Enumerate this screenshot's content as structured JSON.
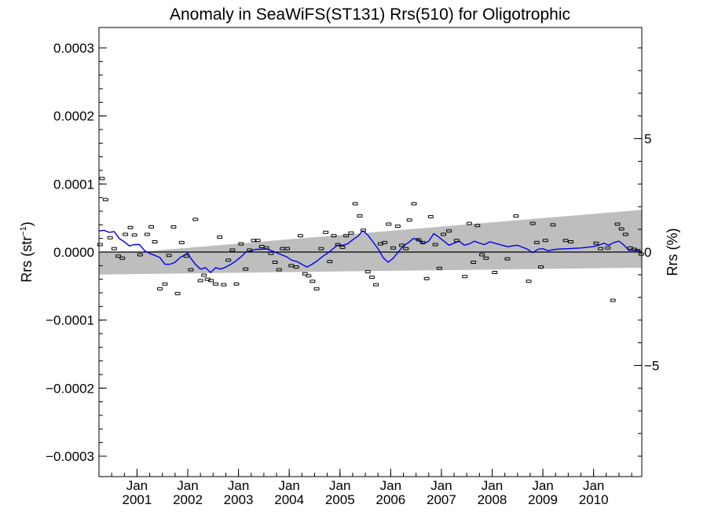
{
  "chart_data": {
    "type": "scatter",
    "title": "Anomaly in SeaWiFS(ST131) Rrs(510) for Oligotrophic",
    "ylabel_left": "Rrs (str",
    "ylabel_left_sup": "−1",
    "ylabel_left_close": ")",
    "ylabel_right": "Rrs (%)",
    "xlim": [
      2000.25,
      2010.95
    ],
    "ylim": [
      -0.00033,
      0.00033
    ],
    "y2lim": [
      -9.9,
      9.9
    ],
    "y_ticks": [
      0.0003,
      0.0002,
      0.0001,
      0.0,
      -0.0001,
      -0.0002,
      -0.0003
    ],
    "y_tick_labels": [
      "0.0003",
      "0.0002",
      "0.0001",
      "0.0000",
      "−0.0001",
      "−0.0002",
      "−0.0003"
    ],
    "y2_ticks": [
      5,
      0,
      -5
    ],
    "y2_tick_labels": [
      "5",
      "0",
      "−5"
    ],
    "x_ticks": [
      2001.0,
      2002.0,
      2003.0,
      2004.0,
      2005.0,
      2006.0,
      2007.0,
      2008.0,
      2009.0,
      2010.0
    ],
    "x_tick_month": "Jan",
    "x_tick_years": [
      "2001",
      "2002",
      "2003",
      "2004",
      "2005",
      "2006",
      "2007",
      "2008",
      "2009",
      "2010"
    ],
    "band": {
      "color": "#bebebe",
      "x": [
        2001.0,
        2010.95
      ],
      "upper": [
        0.0,
        6.2e-05
      ],
      "lower": [
        -3.3e-05,
        -2.3e-05
      ],
      "upper_left": 0.0,
      "lower_left": -3.3e-05,
      "x_left": 2000.25
    },
    "zero_line": 0.0,
    "series": [
      {
        "kind": "points",
        "color": "#000000",
        "x": [
          2000.27,
          2000.31,
          2000.38,
          2000.47,
          2000.55,
          2000.63,
          2000.71,
          2000.77,
          2000.87,
          2000.95,
          2001.06,
          2001.2,
          2001.28,
          2001.35,
          2001.45,
          2001.55,
          2001.63,
          2001.72,
          2001.8,
          2001.88,
          2001.97,
          2002.06,
          2002.15,
          2002.25,
          2002.32,
          2002.39,
          2002.46,
          2002.55,
          2002.63,
          2002.71,
          2002.8,
          2002.88,
          2002.96,
          2003.05,
          2003.14,
          2003.22,
          2003.3,
          2003.38,
          2003.46,
          2003.55,
          2003.64,
          2003.72,
          2003.8,
          2003.87,
          2003.96,
          2004.04,
          2004.14,
          2004.22,
          2004.31,
          2004.38,
          2004.46,
          2004.54,
          2004.63,
          2004.72,
          2004.8,
          2004.88,
          2004.96,
          2005.05,
          2005.12,
          2005.22,
          2005.3,
          2005.39,
          2005.46,
          2005.55,
          2005.63,
          2005.71,
          2005.8,
          2005.88,
          2005.96,
          2006.05,
          2006.14,
          2006.22,
          2006.3,
          2006.37,
          2006.46,
          2006.55,
          2006.63,
          2006.71,
          2006.79,
          2006.88,
          2006.96,
          2007.04,
          2007.15,
          2007.3,
          2007.46,
          2007.55,
          2007.63,
          2007.71,
          2007.8,
          2007.88,
          2008.05,
          2008.3,
          2008.47,
          2008.72,
          2008.8,
          2008.88,
          2008.96,
          2009.05,
          2009.2,
          2009.45,
          2009.55,
          2010.05,
          2010.14,
          2010.28,
          2010.38,
          2010.47,
          2010.55,
          2010.63,
          2010.72,
          2010.8,
          2010.87,
          2010.94
        ],
        "y": [
          1.1e-05,
          0.000108,
          7.7e-05,
          2.1e-05,
          5e-06,
          -6e-06,
          -9e-06,
          2.6e-05,
          3.6e-05,
          2.5e-05,
          -4e-06,
          2.6e-05,
          3.7e-05,
          1.5e-05,
          -5.4e-05,
          -4.7e-05,
          -5e-06,
          3.7e-05,
          -6.1e-05,
          1.4e-05,
          -6e-06,
          -2.6e-05,
          4.8e-05,
          -4.2e-05,
          -3.4e-05,
          -4e-05,
          -4.2e-05,
          -4.7e-05,
          2.2e-05,
          -4.8e-05,
          -1.2e-05,
          3e-06,
          -4.7e-05,
          1.2e-05,
          -2.5e-05,
          3e-06,
          1.7e-05,
          1.7e-05,
          8e-06,
          6e-06,
          -2e-06,
          -1.5e-05,
          -2.6e-05,
          5e-06,
          5e-06,
          -2e-05,
          -2.2e-05,
          2.4e-05,
          -3.2e-05,
          -3.5e-05,
          -4.3e-05,
          -5.4e-05,
          5e-06,
          2.9e-05,
          -1.4e-05,
          2.4e-05,
          1.1e-05,
          7e-06,
          2.4e-05,
          2.8e-05,
          7.1e-05,
          5.3e-05,
          3.2e-05,
          -2.9e-05,
          -3.7e-05,
          -4.8e-05,
          1.2e-05,
          1.4e-05,
          4.1e-05,
          6e-06,
          3.8e-05,
          1e-05,
          5e-06,
          4.7e-05,
          7.1e-05,
          1.8e-05,
          1.4e-05,
          -3.9e-05,
          5.2e-05,
          1.1e-05,
          -2.4e-05,
          2.6e-05,
          3.1e-05,
          1.7e-05,
          -3.6e-05,
          4.2e-05,
          -1.5e-05,
          3.9e-05,
          -4e-06,
          -9e-06,
          -3e-05,
          -1e-05,
          5.3e-05,
          -4.3e-05,
          4.2e-05,
          1.4e-05,
          -2.2e-05,
          1.7e-05,
          4e-05,
          1.7e-05,
          1.5e-05,
          1.3e-05,
          5e-06,
          6e-06,
          -7.1e-05,
          4.1e-05,
          3.4e-05,
          2.6e-05,
          6e-06,
          4e-06,
          2e-06,
          -3e-06
        ]
      },
      {
        "kind": "line",
        "color": "#0000ee",
        "x": [
          2000.25,
          2000.35,
          2000.45,
          2000.55,
          2000.65,
          2000.75,
          2000.85,
          2000.95,
          2001.05,
          2001.15,
          2001.25,
          2001.35,
          2001.45,
          2001.55,
          2001.65,
          2001.75,
          2001.85,
          2001.95,
          2002.0,
          2002.05,
          2002.15,
          2002.25,
          2002.35,
          2002.45,
          2002.55,
          2002.65,
          2002.75,
          2002.85,
          2002.95,
          2003.05,
          2003.15,
          2003.25,
          2003.35,
          2003.45,
          2003.55,
          2003.65,
          2003.75,
          2003.85,
          2003.95,
          2004.05,
          2004.15,
          2004.25,
          2004.35,
          2004.45,
          2004.55,
          2004.65,
          2004.75,
          2004.85,
          2004.95,
          2005.05,
          2005.15,
          2005.25,
          2005.35,
          2005.45,
          2005.55,
          2005.65,
          2005.75,
          2005.85,
          2005.95,
          2006.05,
          2006.15,
          2006.25,
          2006.35,
          2006.45,
          2006.55,
          2006.65,
          2006.75,
          2006.85,
          2006.95,
          2007.05,
          2007.15,
          2007.25,
          2007.35,
          2007.45,
          2007.55,
          2007.65,
          2007.75,
          2007.85,
          2007.95,
          2008.1,
          2008.3,
          2008.5,
          2008.7,
          2008.8,
          2008.9,
          2009.0,
          2009.1,
          2009.25,
          2009.5,
          2009.75,
          2010.0,
          2010.1,
          2010.2,
          2010.3,
          2010.4,
          2010.5,
          2010.6,
          2010.7,
          2010.8,
          2010.9,
          2010.95
        ],
        "y": [
          3.1e-05,
          3.2e-05,
          2.9e-05,
          3e-05,
          2e-05,
          1.5e-05,
          9e-06,
          1.1e-05,
          1.1e-05,
          2e-06,
          -2e-06,
          -5e-06,
          -8e-06,
          -1.8e-05,
          -1.8e-05,
          -1.5e-05,
          -8e-06,
          -4e-06,
          -1e-06,
          -8e-06,
          -1.8e-05,
          -2.5e-05,
          -2.3e-05,
          -3e-05,
          -2.3e-05,
          -2.5e-05,
          -2.2e-05,
          -1.8e-05,
          -1.3e-05,
          -7e-06,
          0.0,
          2e-06,
          4e-06,
          4e-06,
          5e-06,
          2e-06,
          -1e-06,
          -4e-06,
          -7e-06,
          -1.2e-05,
          -1.4e-05,
          -1.8e-05,
          -2.2e-05,
          -1.8e-05,
          -1.3e-05,
          -7e-06,
          -2e-06,
          4e-06,
          1e-05,
          1e-05,
          1.2e-05,
          1.8e-05,
          2.3e-05,
          3.1e-05,
          2.5e-05,
          1.5e-05,
          5e-06,
          -8e-06,
          -1.5e-05,
          -9e-06,
          0.0,
          9e-06,
          1.4e-05,
          2e-05,
          1.8e-05,
          1.2e-05,
          1.6e-05,
          2.7e-05,
          2.2e-05,
          1.6e-05,
          1e-05,
          1.3e-05,
          1.6e-05,
          1e-05,
          1.2e-05,
          1.6e-05,
          1.3e-05,
          1.1e-05,
          1.5e-05,
          1.2e-05,
          8e-06,
          1e-05,
          4e-06,
          -1e-06,
          4e-06,
          5e-06,
          2e-06,
          4e-06,
          5e-06,
          6e-06,
          8e-06,
          1e-05,
          1.3e-05,
          1e-05,
          1.4e-05,
          1.6e-05,
          1e-05,
          2e-06,
          3e-06,
          2e-06,
          -1e-06
        ]
      }
    ]
  }
}
